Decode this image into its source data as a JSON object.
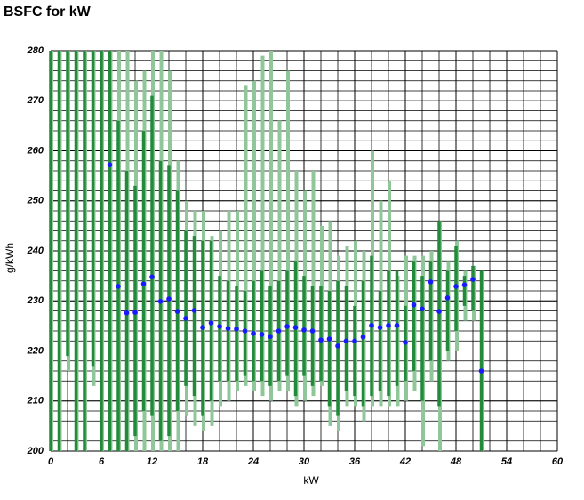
{
  "chart_data": {
    "type": "errorbar",
    "title": "BSFC for kW",
    "x_label": "kW",
    "y_label": "g/kWh",
    "xlim": [
      0,
      60
    ],
    "xticks": [
      0,
      6,
      12,
      18,
      24,
      30,
      36,
      42,
      48,
      54,
      60
    ],
    "ylim": [
      200,
      280
    ],
    "yticks": [
      200,
      210,
      220,
      230,
      240,
      250,
      260,
      270,
      280
    ],
    "minor_grid_step": 2,
    "grid": true,
    "mean_color": "#1a1aff",
    "dark_color": "#228b3a",
    "light_color": "#8fc79a",
    "x": [
      0,
      1,
      2,
      3,
      4,
      5,
      6,
      7,
      8,
      9,
      10,
      11,
      12,
      13,
      14,
      15,
      16,
      17,
      18,
      19,
      20,
      21,
      22,
      23,
      24,
      25,
      26,
      27,
      28,
      29,
      30,
      31,
      32,
      33,
      34,
      35,
      36,
      37,
      38,
      39,
      40,
      41,
      42,
      43,
      44,
      45,
      46,
      47,
      48,
      49,
      50,
      51
    ],
    "mean": [
      null,
      null,
      null,
      null,
      null,
      null,
      null,
      257.2,
      232.9,
      227.6,
      227.7,
      233.4,
      234.8,
      229.9,
      230.4,
      227.9,
      226.5,
      228.1,
      224.7,
      225.6,
      224.9,
      224.5,
      224.4,
      224.0,
      223.5,
      223.3,
      222.9,
      224.0,
      224.9,
      224.7,
      224.2,
      224.0,
      222.2,
      222.4,
      221.0,
      222.0,
      222.0,
      222.8,
      225.1,
      224.7,
      225.1,
      225.1,
      221.7,
      229.2,
      228.4,
      233.8,
      227.9,
      230.6,
      232.9,
      233.2,
      234.3,
      216.0
    ],
    "dark_low": [
      200,
      200,
      219,
      200,
      200,
      217,
      200,
      200,
      200,
      200,
      203,
      208,
      207,
      202,
      203,
      208,
      213,
      211,
      207,
      210,
      214,
      214,
      214,
      215,
      214,
      214,
      213,
      214,
      215,
      211,
      215,
      213,
      214,
      209,
      207,
      212,
      211,
      209,
      211,
      212,
      211,
      213,
      214,
      216,
      210,
      218,
      209,
      220,
      224,
      229,
      228,
      200
    ],
    "dark_high": [
      280,
      280,
      280,
      280,
      280,
      280,
      280,
      280,
      266,
      256,
      253,
      264,
      271,
      258,
      257,
      252,
      244,
      243,
      242,
      242,
      235,
      234,
      233,
      232,
      234,
      236,
      233,
      234,
      236,
      238,
      235,
      233,
      233,
      232,
      234,
      233,
      229,
      234,
      239,
      232,
      236,
      236,
      229,
      238,
      235,
      238,
      246,
      236,
      241,
      235,
      237,
      236
    ],
    "light_low": [
      200,
      200,
      216,
      200,
      200,
      213,
      200,
      200,
      200,
      200,
      200,
      200,
      200,
      200,
      200,
      200,
      207,
      205,
      204,
      205,
      209,
      210,
      212,
      213,
      212,
      211,
      210,
      212,
      212,
      209,
      210,
      211,
      213,
      205,
      204,
      209,
      209,
      206,
      209,
      209,
      209,
      209,
      210,
      212,
      201,
      214,
      200,
      218,
      220,
      226,
      226,
      200
    ],
    "light_high": [
      280,
      280,
      280,
      280,
      280,
      280,
      280,
      280,
      280,
      280,
      274,
      276,
      280,
      280,
      276,
      258,
      250,
      248,
      248,
      243,
      244,
      248,
      248,
      273,
      274,
      279,
      280,
      266,
      276,
      256,
      252,
      256,
      245,
      246,
      239,
      241,
      242,
      240,
      260,
      250,
      254,
      235,
      239,
      239,
      239,
      240,
      246,
      238,
      242,
      236,
      237,
      236
    ]
  }
}
